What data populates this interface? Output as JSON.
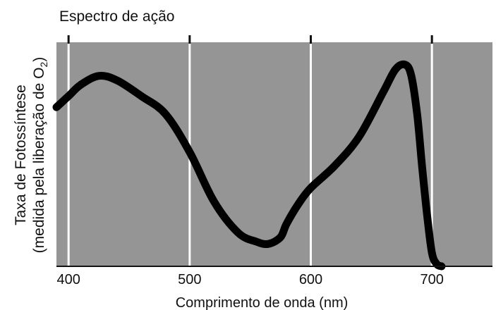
{
  "chart_data": {
    "type": "line",
    "title": "Espectro de ação",
    "xlabel": "Comprimento de onda (nm)",
    "ylabel_line1": "Taxa de Fotossíntese",
    "ylabel_line2_prefix": "(medida pela liberação de O",
    "ylabel_line2_subscript": "2",
    "ylabel_line2_suffix": ")",
    "xlim": [
      390,
      750
    ],
    "ylim": [
      0,
      1
    ],
    "x_ticks": [
      400,
      500,
      600,
      700
    ],
    "x_tick_labels": [
      "400",
      "500",
      "600",
      "700"
    ],
    "grid": "vertical",
    "colors": {
      "plot_bg": "#959595",
      "gridline": "#ffffff",
      "curve": "#000000"
    },
    "series": [
      {
        "x": [
          390,
          400,
          410,
          425,
          440,
          460,
          480,
          500,
          520,
          540,
          555,
          565,
          575,
          580,
          590,
          600,
          620,
          640,
          660,
          670,
          678,
          683,
          688,
          692,
          696,
          700,
          704,
          708
        ],
        "y": [
          0.71,
          0.76,
          0.81,
          0.85,
          0.83,
          0.76,
          0.68,
          0.51,
          0.29,
          0.15,
          0.11,
          0.1,
          0.13,
          0.19,
          0.28,
          0.35,
          0.45,
          0.58,
          0.78,
          0.88,
          0.9,
          0.85,
          0.67,
          0.44,
          0.23,
          0.06,
          0.01,
          0.0
        ]
      }
    ]
  }
}
